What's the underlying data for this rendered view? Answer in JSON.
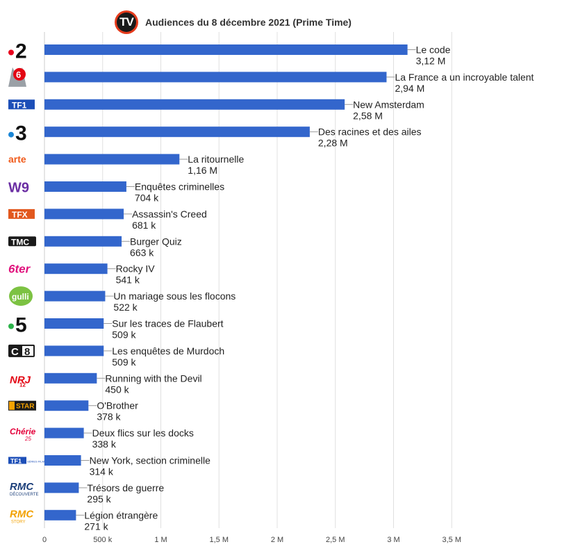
{
  "header": {
    "logo_text": "TV",
    "title": "Audiences du 8 décembre 2021 (Prime Time)"
  },
  "colors": {
    "bar": "#3366cc",
    "grid": "#e0e0e0",
    "text": "#222222",
    "axis_text": "#444444"
  },
  "chart_data": {
    "type": "bar",
    "orientation": "horizontal",
    "title": "Audiences du 8 décembre 2021 (Prime Time)",
    "xlim": [
      0,
      3500000
    ],
    "grid": true,
    "tick_values": [
      0,
      500000,
      1000000,
      1500000,
      2000000,
      2500000,
      3000000,
      3500000
    ],
    "tick_labels": [
      "0",
      "500 k",
      "1 M",
      "1,5 M",
      "2 M",
      "2,5 M",
      "3 M",
      "3,5 M"
    ],
    "rows": [
      {
        "channel": "•2",
        "channel_logo": "france-2-logo",
        "program": "Le code",
        "label": "3,12 M",
        "value": 3120000
      },
      {
        "channel": "M6",
        "channel_logo": "m6-logo",
        "program": "La France a un incroyable talent",
        "label": "2,94 M",
        "value": 2940000
      },
      {
        "channel": "TF1",
        "channel_logo": "tf1-logo",
        "program": "New Amsterdam",
        "label": "2,58 M",
        "value": 2580000
      },
      {
        "channel": "•3",
        "channel_logo": "france-3-logo",
        "program": "Des racines et des ailes",
        "label": "2,28 M",
        "value": 2280000
      },
      {
        "channel": "arte",
        "channel_logo": "arte-logo",
        "program": "La ritournelle",
        "label": "1,16 M",
        "value": 1160000
      },
      {
        "channel": "W9",
        "channel_logo": "w9-logo",
        "program": "Enquêtes criminelles",
        "label": "704 k",
        "value": 704000
      },
      {
        "channel": "TFX",
        "channel_logo": "tfx-logo",
        "program": "Assassin's Creed",
        "label": "681 k",
        "value": 681000
      },
      {
        "channel": "TMC",
        "channel_logo": "tmc-logo",
        "program": "Burger Quiz",
        "label": "663 k",
        "value": 663000
      },
      {
        "channel": "6ter",
        "channel_logo": "6ter-logo",
        "program": "Rocky IV",
        "label": "541 k",
        "value": 541000
      },
      {
        "channel": "gulli",
        "channel_logo": "gulli-logo",
        "program": "Un mariage sous les flocons",
        "label": "522 k",
        "value": 522000
      },
      {
        "channel": "•5",
        "channel_logo": "france-5-logo",
        "program": "Sur les traces de Flaubert",
        "label": "509 k",
        "value": 509000
      },
      {
        "channel": "C8",
        "channel_logo": "c8-logo",
        "program": "Les enquêtes de Murdoch",
        "label": "509 k",
        "value": 509000
      },
      {
        "channel": "NRJ12",
        "channel_logo": "nrj12-logo",
        "program": "Running with the Devil",
        "label": "450 k",
        "value": 450000
      },
      {
        "channel": "CSTAR",
        "channel_logo": "cstar-logo",
        "program": "O'Brother",
        "label": "378 k",
        "value": 378000
      },
      {
        "channel": "Chérie 25",
        "channel_logo": "cherie25-logo",
        "program": "Deux flics sur les docks",
        "label": "338 k",
        "value": 338000
      },
      {
        "channel": "TF1 Séries Films",
        "channel_logo": "tf1-series-films-logo",
        "program": "New York, section criminelle",
        "label": "314 k",
        "value": 314000
      },
      {
        "channel": "RMC Découverte",
        "channel_logo": "rmc-decouverte-logo",
        "program": "Trésors de guerre",
        "label": "295 k",
        "value": 295000
      },
      {
        "channel": "RMC Story",
        "channel_logo": "rmc-story-logo",
        "program": "Légion étrangère",
        "label": "271 k",
        "value": 271000
      }
    ]
  }
}
